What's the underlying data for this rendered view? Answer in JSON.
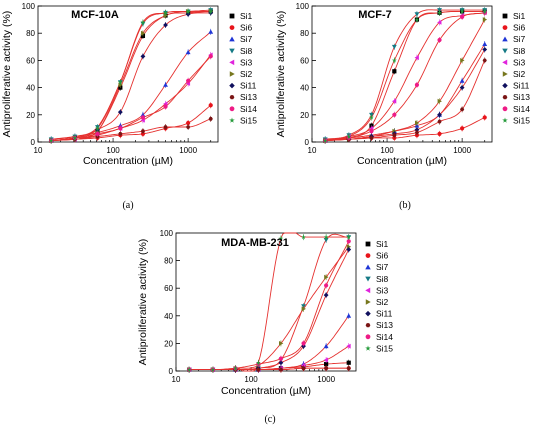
{
  "chart_data": [
    {
      "type": "scatter",
      "panel_label": "(a)",
      "title": "MCF-10A",
      "xlabel": "Concentration (µM)",
      "ylabel": "Antiproliferative activity (%)",
      "xscale": "log",
      "xlim": [
        10,
        2500
      ],
      "ylim": [
        0,
        100
      ],
      "xticks": [
        10,
        100,
        1000
      ],
      "yticks": [
        0,
        20,
        40,
        60,
        80,
        100
      ],
      "x": [
        15,
        31,
        62,
        125,
        250,
        500,
        1000,
        2000
      ],
      "legend_position": "right",
      "series": [
        {
          "name": "Si1",
          "color": "#000000",
          "marker": "square",
          "values": [
            1,
            3,
            8,
            40,
            78,
            93,
            95,
            96
          ]
        },
        {
          "name": "Si6",
          "color": "#e8141b",
          "marker": "circle",
          "values": [
            1,
            2,
            3,
            5,
            6,
            10,
            14,
            27
          ]
        },
        {
          "name": "Si7",
          "color": "#1f35d6",
          "marker": "triangle-up",
          "values": [
            2,
            4,
            7,
            12,
            20,
            42,
            66,
            81
          ]
        },
        {
          "name": "Si8",
          "color": "#157a85",
          "marker": "triangle-down",
          "values": [
            2,
            4,
            11,
            44,
            87,
            95,
            96,
            97
          ]
        },
        {
          "name": "Si3",
          "color": "#e024dc",
          "marker": "triangle-left",
          "values": [
            1,
            2,
            5,
            10,
            16,
            28,
            43,
            64
          ]
        },
        {
          "name": "Si2",
          "color": "#77771e",
          "marker": "triangle-right",
          "values": [
            1,
            3,
            8,
            42,
            80,
            93,
            96,
            96
          ]
        },
        {
          "name": "Si11",
          "color": "#10105e",
          "marker": "diamond",
          "values": [
            1,
            3,
            9,
            22,
            63,
            86,
            94,
            95
          ]
        },
        {
          "name": "Si13",
          "color": "#7a1414",
          "marker": "hexagon",
          "values": [
            1,
            2,
            4,
            6,
            8,
            11,
            11,
            17
          ]
        },
        {
          "name": "Si14",
          "color": "#ee1b86",
          "marker": "circle",
          "values": [
            1,
            3,
            6,
            10,
            18,
            26,
            45,
            63
          ]
        },
        {
          "name": "Si15",
          "color": "#249a3a",
          "marker": "star",
          "values": [
            1,
            3,
            10,
            44,
            88,
            95,
            96,
            96
          ]
        }
      ]
    },
    {
      "type": "scatter",
      "panel_label": "(b)",
      "title": "MCF-7",
      "xlabel": "Concentration (µM)",
      "ylabel": "Antiproliferative activity (%)",
      "xscale": "log",
      "xlim": [
        10,
        2500
      ],
      "ylim": [
        0,
        100
      ],
      "xticks": [
        10,
        100,
        1000
      ],
      "yticks": [
        0,
        20,
        40,
        60,
        80,
        100
      ],
      "x": [
        15,
        31,
        62,
        125,
        250,
        500,
        1000,
        2000
      ],
      "legend_position": "right",
      "series": [
        {
          "name": "Si1",
          "color": "#000000",
          "marker": "square",
          "values": [
            1,
            3,
            12,
            52,
            90,
            95,
            96,
            96
          ]
        },
        {
          "name": "Si6",
          "color": "#e8141b",
          "marker": "circle",
          "values": [
            1,
            2,
            3,
            3,
            5,
            6,
            10,
            18
          ]
        },
        {
          "name": "Si7",
          "color": "#1f35d6",
          "marker": "triangle-up",
          "values": [
            2,
            3,
            5,
            8,
            12,
            20,
            45,
            72
          ]
        },
        {
          "name": "Si8",
          "color": "#157a85",
          "marker": "triangle-down",
          "values": [
            2,
            5,
            20,
            70,
            94,
            97,
            97,
            97
          ]
        },
        {
          "name": "Si3",
          "color": "#e024dc",
          "marker": "triangle-left",
          "values": [
            1,
            4,
            10,
            30,
            62,
            88,
            93,
            95
          ]
        },
        {
          "name": "Si2",
          "color": "#77771e",
          "marker": "triangle-right",
          "values": [
            1,
            2,
            4,
            8,
            14,
            30,
            60,
            90
          ]
        },
        {
          "name": "Si11",
          "color": "#10105e",
          "marker": "diamond",
          "values": [
            1,
            2,
            4,
            6,
            9,
            20,
            40,
            68
          ]
        },
        {
          "name": "Si13",
          "color": "#7a1414",
          "marker": "hexagon",
          "values": [
            1,
            2,
            3,
            5,
            7,
            15,
            24,
            60
          ]
        },
        {
          "name": "Si14",
          "color": "#ee1b86",
          "marker": "circle",
          "values": [
            1,
            3,
            8,
            20,
            42,
            75,
            92,
            95
          ]
        },
        {
          "name": "Si15",
          "color": "#249a3a",
          "marker": "star",
          "values": [
            1,
            4,
            18,
            60,
            90,
            95,
            96,
            96
          ]
        }
      ]
    },
    {
      "type": "scatter",
      "panel_label": "(c)",
      "title": "MDA-MB-231",
      "xlabel": "Concentration (µM)",
      "ylabel": "Antiproliferative activity (%)",
      "xscale": "log",
      "xlim": [
        10,
        2500
      ],
      "ylim": [
        0,
        100
      ],
      "xticks": [
        10,
        100,
        1000
      ],
      "yticks": [
        0,
        20,
        40,
        60,
        80,
        100
      ],
      "x": [
        15,
        31,
        62,
        125,
        250,
        500,
        1000,
        2000
      ],
      "legend_position": "right",
      "series": [
        {
          "name": "Si1",
          "color": "#000000",
          "marker": "square",
          "values": [
            1,
            1,
            1,
            1,
            2,
            3,
            5,
            6
          ]
        },
        {
          "name": "Si6",
          "color": "#e8141b",
          "marker": "circle",
          "values": [
            1,
            1,
            1,
            1,
            1,
            2,
            2,
            2
          ]
        },
        {
          "name": "Si7",
          "color": "#1f35d6",
          "marker": "triangle-up",
          "values": [
            1,
            1,
            1,
            1,
            2,
            5,
            18,
            40
          ]
        },
        {
          "name": "Si8",
          "color": "#157a85",
          "marker": "triangle-down",
          "values": [
            1,
            1,
            1,
            2,
            8,
            47,
            95,
            97
          ]
        },
        {
          "name": "Si3",
          "color": "#e024dc",
          "marker": "triangle-left",
          "values": [
            1,
            1,
            1,
            1,
            2,
            4,
            8,
            18
          ]
        },
        {
          "name": "Si2",
          "color": "#77771e",
          "marker": "triangle-right",
          "values": [
            1,
            1,
            2,
            4,
            20,
            45,
            68,
            90
          ]
        },
        {
          "name": "Si11",
          "color": "#10105e",
          "marker": "diamond",
          "values": [
            1,
            1,
            1,
            2,
            6,
            18,
            55,
            88
          ]
        },
        {
          "name": "Si13",
          "color": "#7a1414",
          "marker": "hexagon",
          "values": [
            1,
            1,
            1,
            1,
            1,
            2,
            2,
            2
          ]
        },
        {
          "name": "Si14",
          "color": "#ee1b86",
          "marker": "circle",
          "values": [
            1,
            1,
            2,
            5,
            9,
            20,
            62,
            94
          ]
        },
        {
          "name": "Si15",
          "color": "#249a3a",
          "marker": "star",
          "values": [
            1,
            1,
            2,
            6,
            96,
            97,
            97,
            97
          ]
        }
      ]
    }
  ]
}
